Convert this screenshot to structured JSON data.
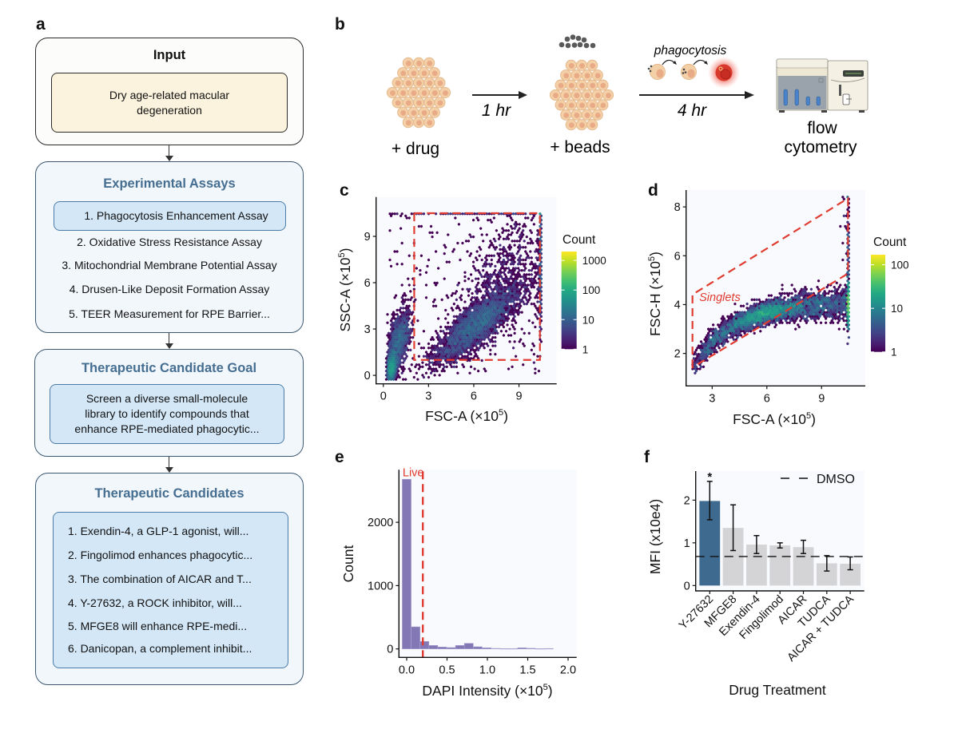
{
  "panel_labels": {
    "a": "a",
    "b": "b",
    "c": "c",
    "d": "d",
    "e": "e",
    "f": "f"
  },
  "flowchart": {
    "input": {
      "title": "Input",
      "lines": [
        "Dry age-related macular",
        "degeneration"
      ]
    },
    "assays": {
      "title": "Experimental Assays",
      "items": [
        "1. Phagocytosis Enhancement Assay",
        "2. Oxidative Stress Resistance Assay",
        "3. Mitochondrial Membrane Potential Assay",
        "4. Drusen-Like Deposit Formation Assay",
        "5. TEER Measurement for RPE Barrier..."
      ],
      "selected_index": 0
    },
    "goal": {
      "title": "Therapeutic Candidate Goal",
      "lines": [
        "Screen a diverse small-molecule",
        "library to identify compounds that",
        "enhance RPE-mediated phagocytic..."
      ]
    },
    "candidates": {
      "title": "Therapeutic Candidates",
      "items": [
        "1. Exendin-4, a GLP-1 agonist, will...",
        "2. Fingolimod enhances phagocytic...",
        "3. The combination of AICAR and T...",
        "4. Y-27632, a ROCK inhibitor, will...",
        "5. MFGE8 will enhance RPE-medi...",
        "6. Danicopan, a complement inhibit..."
      ]
    }
  },
  "protocol": {
    "step1_label": "+ drug",
    "step1_time": "1 hr",
    "step2_label": "+ beads",
    "step2_process": "phagocytosis",
    "step2_time": "4 hr",
    "readout_line1": "flow",
    "readout_line2": "cytometry",
    "colors": {
      "cell": "#f4d0a8",
      "nucleus": "#e9aa86",
      "bead": "#5a5a5a",
      "fluorescent_cell": "#d9392c"
    }
  },
  "chart_data": [
    {
      "id": "c",
      "type": "scatter",
      "subtype": "hexbin",
      "xlabel": {
        "base": "FSC-A (×10",
        "sup": "5",
        "tail": ")"
      },
      "ylabel": {
        "base": "SSC-A (×10",
        "sup": "5",
        "tail": ")"
      },
      "xlim": [
        -0.48,
        11.5
      ],
      "ylim": [
        -0.55,
        11.55
      ],
      "xticks": [
        0,
        3,
        6,
        9
      ],
      "xtick_labels": [
        "0",
        "3",
        "6",
        "9"
      ],
      "yticks": [
        0,
        3,
        6,
        9
      ],
      "ytick_labels": [
        "0",
        "3",
        "6",
        "9"
      ],
      "clip": {
        "x": [
          0.25,
          10.4
        ],
        "y": [
          -0.3,
          10.5
        ]
      },
      "components": [
        {
          "type": "gauss",
          "mean": [
            0.55,
            0.5
          ],
          "sd": [
            0.15,
            0.45
          ],
          "corr": 0.3,
          "n": 1500
        },
        {
          "type": "gauss",
          "mean": [
            1.0,
            2.2
          ],
          "sd": [
            0.4,
            1.0
          ],
          "corr": 0.5,
          "n": 1300
        },
        {
          "type": "gauss",
          "mean": [
            6.2,
            3.3
          ],
          "sd": [
            1.35,
            1.2
          ],
          "corr": 0.82,
          "n": 3200
        },
        {
          "type": "gauss",
          "mean": [
            8.2,
            6.5
          ],
          "sd": [
            1.6,
            2.0
          ],
          "corr": 0.4,
          "n": 700
        },
        {
          "type": "uniform",
          "x": [
            0.3,
            10.4
          ],
          "y": [
            0,
            10.5
          ],
          "n": 250
        },
        {
          "type": "gauss",
          "mean": [
            10.6,
            7.5
          ],
          "sd": [
            0.2,
            2.0
          ],
          "corr": 0,
          "n": 400
        },
        {
          "type": "gauss",
          "mean": [
            6.0,
            10.8
          ],
          "sd": [
            3.0,
            0.2
          ],
          "corr": 0,
          "n": 120
        }
      ],
      "gate": {
        "type": "rectangle",
        "x": [
          2.05,
          10.39
        ],
        "y": [
          1.0,
          10.5
        ],
        "color": "#e03c31"
      },
      "colorbar": {
        "title": "Count",
        "scale": "log",
        "min": 1,
        "max": 2000,
        "ticks": [
          1,
          10,
          100,
          1000
        ],
        "tick_labels": [
          "1",
          "10",
          "100",
          "1000"
        ],
        "colormap": "viridis"
      },
      "legend": "right"
    },
    {
      "id": "d",
      "type": "scatter",
      "subtype": "hexbin",
      "xlabel": {
        "base": "FSC-A (×10",
        "sup": "5",
        "tail": ")"
      },
      "ylabel": {
        "base": "FSC-H (×10",
        "sup": "5",
        "tail": ")"
      },
      "xlim": [
        1.57,
        11.4
      ],
      "ylim": [
        0.67,
        8.69
      ],
      "xticks": [
        3,
        6,
        9
      ],
      "xtick_labels": [
        "3",
        "6",
        "9"
      ],
      "yticks": [
        2,
        4,
        6,
        8
      ],
      "ytick_labels": [
        "2",
        "4",
        "6",
        "8"
      ],
      "clip": {
        "x": [
          1.9,
          10.45
        ],
        "y": [
          0.9,
          8.4
        ]
      },
      "components": [
        {
          "type": "curve",
          "x_mean": 5.8,
          "x_sd": 1.1,
          "n": 2400,
          "a": 4.1,
          "b": 2.6,
          "x0": 2,
          "k": 2.2,
          "noise": 0.22
        },
        {
          "type": "curve",
          "x_mean": 9.0,
          "x_sd": 1.3,
          "n": 1100,
          "a": 4.1,
          "b": 2.6,
          "x0": 2,
          "k": 2.2,
          "noise": 0.3
        },
        {
          "type": "curve",
          "x_mean": 3.0,
          "x_sd": 0.7,
          "n": 500,
          "a": 4.1,
          "b": 2.6,
          "x0": 2,
          "k": 2.2,
          "noise": 0.25
        },
        {
          "type": "gauss",
          "mean": [
            10.8,
            4.0
          ],
          "sd": [
            0.3,
            0.5
          ],
          "corr": 0,
          "n": 500
        },
        {
          "type": "gauss",
          "mean": [
            10.8,
            6.0
          ],
          "sd": [
            0.3,
            1.4
          ],
          "corr": 0,
          "n": 150
        }
      ],
      "gate": {
        "type": "polygon",
        "points": [
          [
            1.92,
            1.43
          ],
          [
            1.92,
            4.41
          ],
          [
            10.45,
            8.35
          ],
          [
            10.45,
            5.27
          ]
        ],
        "label": "Singlets",
        "label_at": [
          2.29,
          4.15
        ],
        "color": "#e03c31"
      },
      "colorbar": {
        "title": "Count",
        "scale": "log",
        "min": 1,
        "max": 170,
        "ticks": [
          1,
          10,
          100
        ],
        "tick_labels": [
          "1",
          "10",
          "100"
        ],
        "colormap": "viridis"
      },
      "legend": "right"
    },
    {
      "id": "e",
      "type": "bar",
      "subtype": "histogram",
      "xlabel": {
        "base": "DAPI Intensity (×10",
        "sup": "5",
        "tail": ")"
      },
      "ylabel": "Count",
      "xlim": [
        -0.096,
        2.106
      ],
      "ylim": [
        -134,
        2830
      ],
      "xticks": [
        0,
        0.5,
        1.0,
        1.5,
        2.0
      ],
      "xtick_labels": [
        "0.0",
        "0.5",
        "1.0",
        "1.5",
        "2.0"
      ],
      "yticks": [
        0,
        1000,
        2000
      ],
      "ytick_labels": [
        "0",
        "1000",
        "2000"
      ],
      "bin_width": 0.11,
      "bin_centers": [
        0.0,
        0.11,
        0.22,
        0.33,
        0.44,
        0.55,
        0.66,
        0.77,
        0.88,
        0.99,
        1.1,
        1.21,
        1.32,
        1.43,
        1.54,
        1.65,
        1.76
      ],
      "counts": [
        2680,
        349,
        118,
        55,
        30,
        21,
        55,
        88,
        34,
        17,
        8,
        5,
        5,
        17,
        10,
        4,
        6
      ],
      "bar_color": "#8378b5",
      "threshold": {
        "x": 0.2,
        "label": "Live",
        "color": "#e03c31"
      }
    },
    {
      "id": "f",
      "type": "bar",
      "xlabel": "Drug Treatment",
      "ylabel": "MFI (x10e4)",
      "ylim": [
        -0.125,
        2.68
      ],
      "yticks": [
        0,
        1,
        2
      ],
      "ytick_labels": [
        "0",
        "1",
        "2"
      ],
      "categories": [
        "Y-27632",
        "MFGE8",
        "Exendin-4",
        "Fingolimod",
        "AICAR",
        "TUDCA",
        "AICAR + TUDCA"
      ],
      "values": [
        1.98,
        1.35,
        0.96,
        0.94,
        0.9,
        0.52,
        0.51
      ],
      "error_low": [
        1.54,
        0.82,
        0.75,
        0.88,
        0.75,
        0.34,
        0.37
      ],
      "error_high": [
        2.44,
        1.89,
        1.17,
        1.0,
        1.06,
        0.7,
        0.67
      ],
      "highlight": "Y-27632",
      "colors": {
        "highlight": "#3e6a8f",
        "default": "#d4d4d6"
      },
      "significance": [
        {
          "category": "Y-27632",
          "label": "*"
        }
      ],
      "reference": {
        "label": "DMSO",
        "value": 0.68,
        "style": "dashed"
      },
      "legend": "top-right"
    }
  ]
}
